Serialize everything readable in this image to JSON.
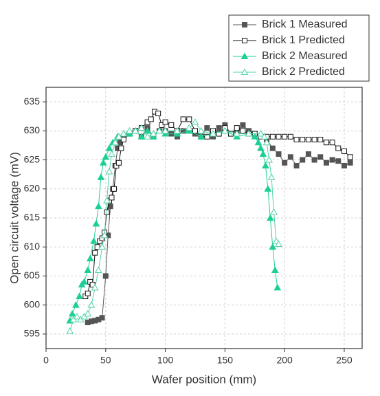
{
  "chart_data": {
    "type": "line",
    "x_label": "Wafer position (mm)",
    "y_label": "Open circuit voltage (mV)",
    "xlim": [
      0,
      265
    ],
    "ylim": [
      592.5,
      637.5
    ],
    "xticks": [
      0,
      50,
      100,
      150,
      200,
      250
    ],
    "yticks": [
      595,
      600,
      605,
      610,
      615,
      620,
      625,
      630,
      635
    ],
    "grid": true,
    "legend": "top-right",
    "series": [
      {
        "name": "Brick 1 Measured",
        "color": "#555555",
        "marker": "square",
        "filled": true,
        "x": [
          35,
          38,
          41,
          44,
          47,
          50,
          52,
          54,
          56,
          58,
          60,
          62,
          65,
          70,
          75,
          80,
          85,
          90,
          95,
          100,
          105,
          110,
          115,
          120,
          125,
          130,
          135,
          140,
          145,
          150,
          155,
          160,
          165,
          170,
          175,
          180,
          185,
          190,
          195,
          200,
          205,
          210,
          215,
          220,
          225,
          230,
          235,
          240,
          245,
          250,
          255
        ],
        "values": [
          597,
          597.2,
          597.3,
          597.5,
          597.8,
          605,
          612,
          617,
          620,
          624,
          627,
          628,
          629,
          629.5,
          630,
          629,
          630.5,
          629,
          630,
          630,
          629.5,
          629,
          630,
          630,
          629.5,
          629,
          630.5,
          629,
          630.5,
          631,
          629.5,
          630,
          631,
          630,
          629.5,
          629,
          628.5,
          627,
          626,
          624.5,
          625.5,
          624,
          625,
          626,
          625,
          625.5,
          624.5,
          625,
          624.8,
          624,
          624.5
        ]
      },
      {
        "name": "Brick 1 Predicted",
        "color": "#111111",
        "marker": "square",
        "filled": false,
        "x": [
          33,
          35,
          37,
          39,
          41,
          43,
          45,
          47,
          49,
          51,
          53,
          55,
          57,
          59,
          61,
          63,
          65,
          70,
          75,
          80,
          85,
          88,
          91,
          94,
          97,
          100,
          105,
          110,
          115,
          120,
          125,
          130,
          135,
          140,
          145,
          150,
          155,
          160,
          165,
          170,
          175,
          180,
          185,
          190,
          195,
          200,
          205,
          210,
          215,
          220,
          225,
          230,
          235,
          240,
          245,
          250,
          255
        ],
        "values": [
          601.5,
          602,
          604,
          603.5,
          609,
          610,
          611,
          611.5,
          612.5,
          616,
          618,
          618.5,
          620,
          624,
          624.5,
          627,
          628.5,
          629.5,
          630,
          630.5,
          631.5,
          632,
          633.3,
          633,
          631,
          631.5,
          631,
          630,
          632,
          632,
          630,
          629,
          629,
          630,
          629.5,
          630.5,
          629.5,
          630.5,
          630,
          629.5,
          629.5,
          629,
          629,
          629,
          629,
          629,
          629,
          628.5,
          628.5,
          628.5,
          628.5,
          628.5,
          628,
          628,
          627,
          626.5,
          625.5
        ]
      },
      {
        "name": "Brick 2 Measured",
        "color": "#1ccf97",
        "marker": "triangle",
        "filled": true,
        "x": [
          20,
          22,
          25,
          28,
          30,
          32,
          35,
          37,
          40,
          42,
          44,
          46,
          48,
          50,
          53,
          56,
          60,
          65,
          70,
          75,
          80,
          85,
          90,
          95,
          100,
          110,
          120,
          130,
          140,
          150,
          160,
          170,
          175,
          178,
          180,
          182,
          184,
          186,
          188,
          190,
          192,
          194
        ],
        "values": [
          597.3,
          598.5,
          600,
          601.5,
          603.5,
          604,
          606,
          608,
          611,
          614,
          617,
          622,
          624.5,
          625.5,
          627,
          628,
          629,
          629.5,
          629.5,
          630,
          629,
          630,
          629,
          630,
          629.5,
          629.5,
          630,
          629,
          629.5,
          630,
          629,
          629.5,
          629,
          628,
          627,
          626,
          624,
          620,
          615,
          610,
          606,
          603
        ]
      },
      {
        "name": "Brick 2 Predicted",
        "color": "#4fd3a4",
        "marker": "triangle",
        "filled": false,
        "x": [
          20,
          23,
          26,
          29,
          32,
          35,
          38,
          41,
          44,
          47,
          49,
          51,
          53,
          55,
          58,
          61,
          65,
          70,
          75,
          80,
          85,
          90,
          95,
          100,
          110,
          120,
          125,
          130,
          140,
          150,
          160,
          170,
          180,
          183,
          185,
          187,
          189,
          191,
          193,
          195
        ],
        "values": [
          595.5,
          597.5,
          598,
          597.5,
          598,
          598.5,
          600,
          603,
          606,
          610,
          612,
          618,
          623,
          626,
          628,
          629,
          629.5,
          630,
          630,
          630.5,
          629,
          629.5,
          630,
          630,
          630,
          630.5,
          631.5,
          630,
          629.5,
          630,
          629.5,
          629.5,
          629.5,
          629,
          628,
          625,
          622,
          616,
          611,
          610.5
        ]
      }
    ]
  }
}
